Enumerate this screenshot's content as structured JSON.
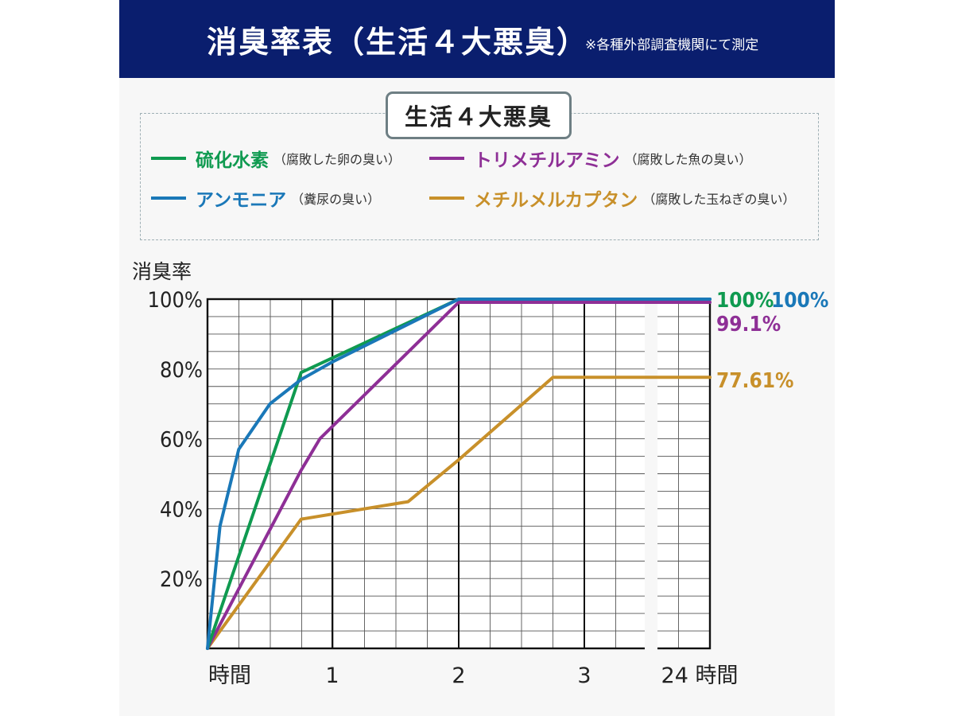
{
  "header": {
    "title": "消臭率表（生活４大悪臭）",
    "note": "※各種外部調査機関にて測定"
  },
  "legend": {
    "title": "生活４大悪臭",
    "items": [
      {
        "name": "硫化水素",
        "desc": "（腐敗した卵の臭い）",
        "color": "#0f9a50"
      },
      {
        "name": "トリメチルアミン",
        "desc": "（腐敗した魚の臭い）",
        "color": "#8e2f96"
      },
      {
        "name": "アンモニア",
        "desc": "（糞尿の臭い）",
        "color": "#1a78b8"
      },
      {
        "name": "メチルメルカプタン",
        "desc": "（腐敗した玉ねぎの臭い）",
        "color": "#c8902a"
      }
    ]
  },
  "chart_data": {
    "type": "line",
    "ylabel": "消臭率",
    "ylim": [
      0,
      100
    ],
    "yticks": [
      "100%",
      "80%",
      "60%",
      "40%",
      "20%"
    ],
    "ytick_values": [
      100,
      80,
      60,
      40,
      20
    ],
    "xticks": [
      "時間",
      "1",
      "2",
      "3",
      "24 時間"
    ],
    "xtick_values": [
      0,
      1,
      2,
      3,
      4
    ],
    "xlim": [
      0,
      4
    ],
    "axis_break_between": [
      3,
      4
    ],
    "grid": true,
    "series": [
      {
        "name": "アンモニア",
        "color": "#1a78b8",
        "x": [
          0,
          0.1,
          0.25,
          0.5,
          0.75,
          1.0,
          2.0,
          4.0
        ],
        "y": [
          0,
          35,
          57,
          70,
          77,
          82,
          100,
          100
        ],
        "end_label": "100%"
      },
      {
        "name": "硫化水素",
        "color": "#0f9a50",
        "x": [
          0,
          0.75,
          2.0,
          4.0
        ],
        "y": [
          0,
          79,
          100,
          100
        ],
        "end_label": "100%"
      },
      {
        "name": "トリメチルアミン",
        "color": "#8e2f96",
        "x": [
          0,
          0.75,
          0.9,
          2.0,
          4.0
        ],
        "y": [
          0,
          51,
          60,
          99.1,
          99.1
        ],
        "end_label": "99.1%"
      },
      {
        "name": "メチルメルカプタン",
        "color": "#c8902a",
        "x": [
          0,
          0.75,
          1.6,
          2.0,
          2.75,
          4.0
        ],
        "y": [
          0,
          37,
          42,
          54,
          77.61,
          77.61
        ],
        "end_label": "77.61%"
      }
    ]
  }
}
